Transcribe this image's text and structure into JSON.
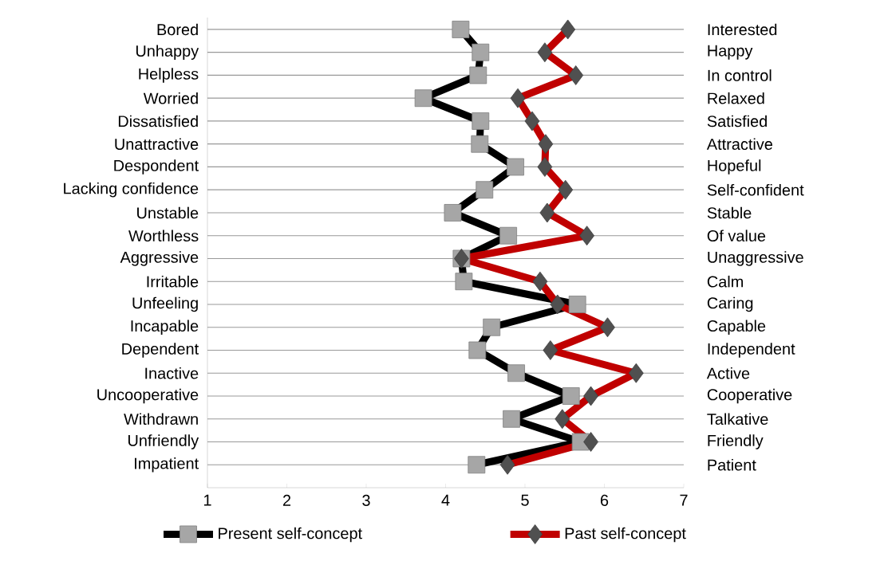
{
  "chart_data": {
    "type": "line",
    "orientation": "horizontal",
    "categories": [
      "Bored",
      "Unhappy",
      "Helpless",
      "Worried",
      "Dissatisfied",
      "Unattractive",
      "Despondent",
      "Lacking confidence",
      "Unstable",
      "Worthless",
      "Aggressive",
      "Irritable",
      "Unfeeling",
      "Incapable",
      "Dependent",
      "Inactive",
      "Uncooperative",
      "Withdrawn",
      "Unfriendly",
      "Impatient"
    ],
    "y2_categories": [
      "Interested",
      "Happy",
      "In control",
      "Relaxed",
      "Satisfied",
      "Attractive",
      "Hopeful",
      "Self-confident",
      "Stable",
      "Of value",
      "Unaggressive",
      "Calm",
      "Caring",
      "Capable",
      "Independent",
      "Active",
      "Cooperative",
      "Talkative",
      "Friendly",
      "Patient"
    ],
    "series": [
      {
        "name": "Present self-concept",
        "color": "#000000",
        "marker": "square",
        "values": [
          4.19,
          4.44,
          4.41,
          3.72,
          4.44,
          4.43,
          4.88,
          4.49,
          4.09,
          4.79,
          4.2,
          4.23,
          5.66,
          4.58,
          4.4,
          4.89,
          5.58,
          4.83,
          5.7,
          4.39
        ]
      },
      {
        "name": "Past self-concept",
        "color": "#c00000",
        "marker": "diamond",
        "values": [
          5.54,
          5.25,
          5.64,
          4.91,
          5.09,
          5.26,
          5.25,
          5.51,
          5.28,
          5.78,
          4.2,
          5.19,
          5.41,
          6.04,
          5.32,
          6.4,
          5.83,
          5.47,
          5.83,
          4.78
        ]
      }
    ],
    "xlim": [
      1,
      7
    ],
    "xticks": [
      1,
      2,
      3,
      4,
      5,
      6,
      7
    ],
    "grid": "y",
    "legend": "bottom",
    "line_style": "solid"
  }
}
